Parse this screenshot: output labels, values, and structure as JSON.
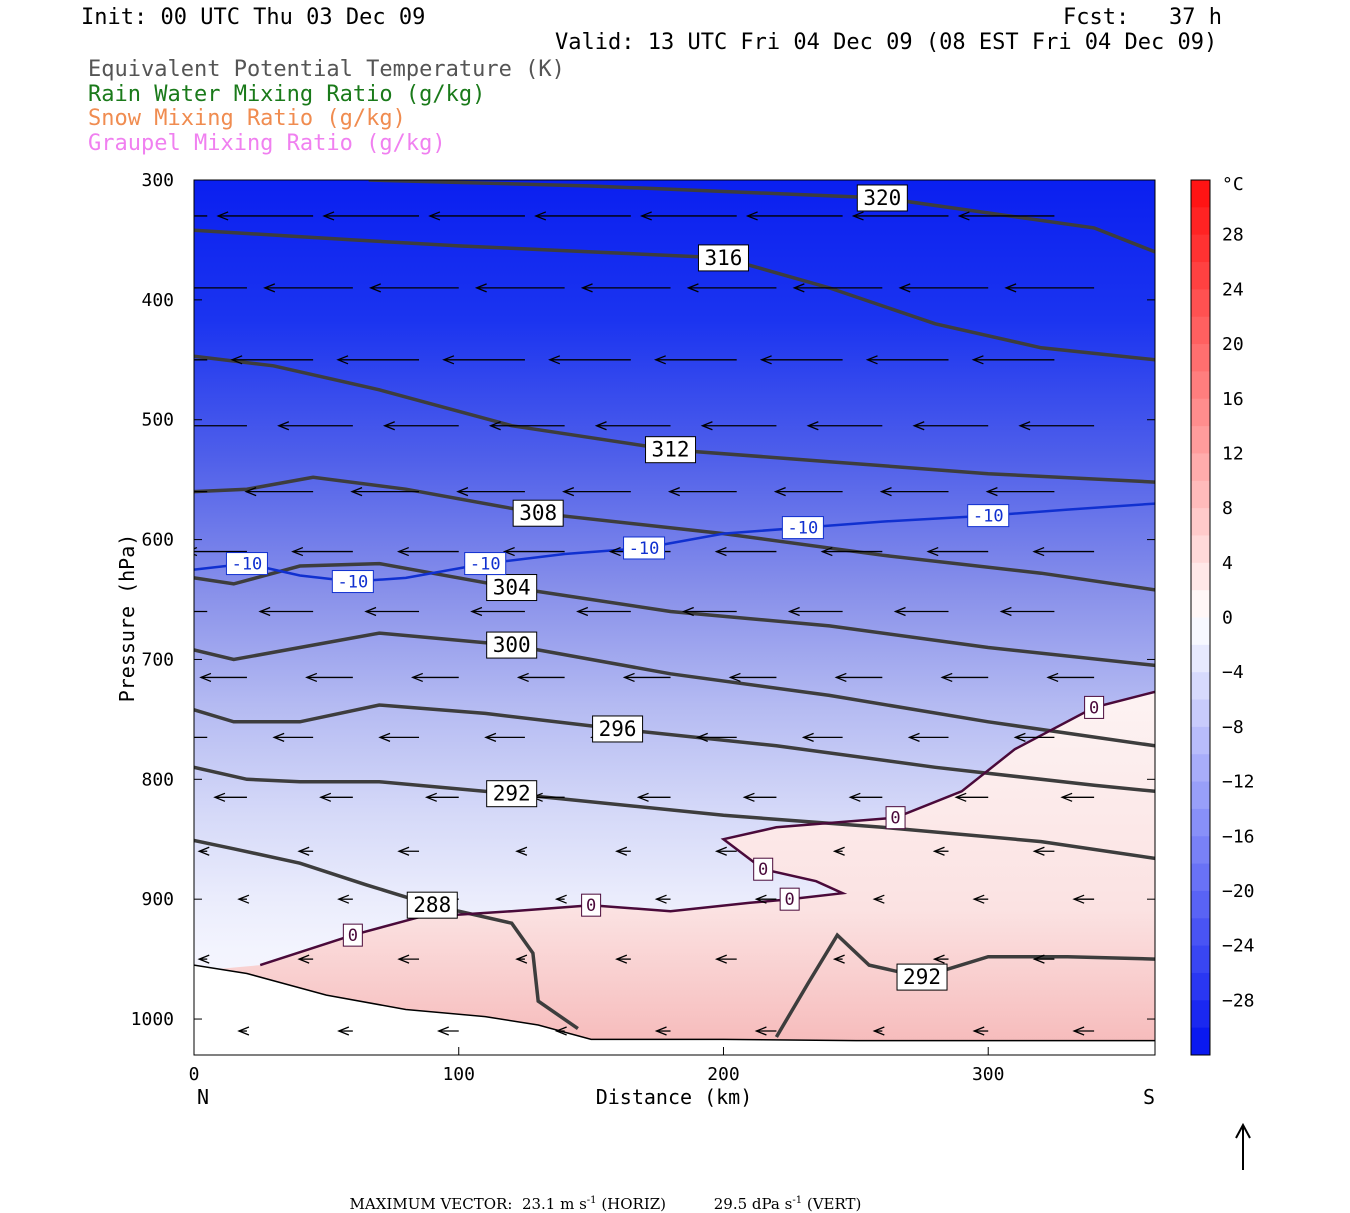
{
  "header": {
    "init": "Init: 00 UTC Thu 03 Dec 09",
    "fcst": "Fcst:   37 h",
    "valid": "Valid: 13 UTC Fri 04 Dec 09 (08 EST Fri 04 Dec 09)"
  },
  "legend": [
    {
      "text": "Equivalent Potential Temperature (K)",
      "color": "#555555"
    },
    {
      "text": "Rain Water Mixing Ratio (g/kg)",
      "color": "#1a7a1a"
    },
    {
      "text": "Snow Mixing Ratio (g/kg)",
      "color": "#f08c50"
    },
    {
      "text": "Graupel Mixing Ratio (g/kg)",
      "color": "#f080f0"
    }
  ],
  "footer": {
    "prefix": "MAXIMUM VECTOR:",
    "horiz_value": "23.1 m s",
    "horiz_exp": "-1",
    "horiz_suffix": " (HORIZ)",
    "vert_value": "29.5 dPa s",
    "vert_exp": "-1",
    "vert_suffix": " (VERT)"
  },
  "chart_data": {
    "type": "cross-section",
    "xlabel": "Distance (km)",
    "ylabel": "Pressure (hPa)",
    "x_range": [
      0,
      363
    ],
    "y_range": [
      300,
      1030
    ],
    "y_scale": "linear, reversed",
    "x_ticks": [
      0,
      100,
      200,
      300
    ],
    "y_ticks": [
      300,
      400,
      500,
      600,
      700,
      800,
      900,
      1000
    ],
    "left_end_label": "N",
    "right_end_label": "S",
    "colorbar": {
      "unit": "°C",
      "ticks": [
        28,
        24,
        20,
        16,
        12,
        8,
        4,
        0,
        -4,
        -8,
        -12,
        -16,
        -20,
        -24,
        -28
      ]
    },
    "theta_e_contours": [
      {
        "label": "320",
        "points": [
          [
            66,
            300
          ],
          [
            150,
            305
          ],
          [
            260,
            315
          ],
          [
            340,
            340
          ],
          [
            363,
            360
          ]
        ]
      },
      {
        "label": "316",
        "points": [
          [
            0,
            342
          ],
          [
            60,
            350
          ],
          [
            100,
            355
          ],
          [
            150,
            360
          ],
          [
            200,
            365
          ],
          [
            240,
            390
          ],
          [
            280,
            420
          ],
          [
            320,
            440
          ],
          [
            363,
            450
          ]
        ]
      },
      {
        "label": "312",
        "points": [
          [
            0,
            447
          ],
          [
            30,
            455
          ],
          [
            70,
            475
          ],
          [
            120,
            505
          ],
          [
            180,
            525
          ],
          [
            240,
            535
          ],
          [
            300,
            545
          ],
          [
            363,
            552
          ]
        ]
      },
      {
        "label": "308",
        "points": [
          [
            0,
            560
          ],
          [
            20,
            558
          ],
          [
            45,
            548
          ],
          [
            80,
            558
          ],
          [
            130,
            578
          ],
          [
            200,
            595
          ],
          [
            260,
            613
          ],
          [
            320,
            628
          ],
          [
            363,
            642
          ]
        ]
      },
      {
        "label": "304",
        "points": [
          [
            0,
            632
          ],
          [
            15,
            637
          ],
          [
            40,
            622
          ],
          [
            70,
            620
          ],
          [
            120,
            640
          ],
          [
            180,
            660
          ],
          [
            240,
            672
          ],
          [
            300,
            690
          ],
          [
            363,
            705
          ]
        ]
      },
      {
        "label": "300",
        "points": [
          [
            0,
            692
          ],
          [
            15,
            700
          ],
          [
            40,
            690
          ],
          [
            70,
            678
          ],
          [
            120,
            688
          ],
          [
            180,
            712
          ],
          [
            240,
            730
          ],
          [
            300,
            752
          ],
          [
            363,
            772
          ]
        ]
      },
      {
        "label": "296",
        "points": [
          [
            0,
            742
          ],
          [
            15,
            752
          ],
          [
            40,
            752
          ],
          [
            70,
            738
          ],
          [
            110,
            745
          ],
          [
            160,
            758
          ],
          [
            220,
            772
          ],
          [
            280,
            790
          ],
          [
            340,
            805
          ],
          [
            363,
            810
          ]
        ]
      },
      {
        "label": "292",
        "points": [
          [
            0,
            790
          ],
          [
            20,
            800
          ],
          [
            40,
            802
          ],
          [
            70,
            802
          ],
          [
            120,
            812
          ],
          [
            200,
            830
          ],
          [
            260,
            840
          ],
          [
            320,
            852
          ],
          [
            363,
            866
          ]
        ]
      },
      {
        "label": "292",
        "points": [
          [
            220,
            1015
          ],
          [
            232,
            970
          ],
          [
            243,
            930
          ],
          [
            255,
            955
          ],
          [
            275,
            965
          ],
          [
            300,
            948
          ],
          [
            330,
            948
          ],
          [
            363,
            950
          ]
        ]
      },
      {
        "label": "288",
        "points": [
          [
            0,
            851
          ],
          [
            15,
            858
          ],
          [
            40,
            870
          ],
          [
            65,
            888
          ],
          [
            90,
            905
          ],
          [
            120,
            920
          ],
          [
            128,
            945
          ],
          [
            130,
            985
          ],
          [
            145,
            1008
          ]
        ]
      }
    ],
    "temperature_contours": [
      {
        "label": "-10",
        "points": [
          [
            0,
            625
          ],
          [
            20,
            620
          ],
          [
            40,
            630
          ],
          [
            60,
            635
          ],
          [
            80,
            632
          ],
          [
            110,
            620
          ],
          [
            140,
            612
          ],
          [
            170,
            607
          ],
          [
            200,
            595
          ],
          [
            230,
            590
          ],
          [
            260,
            585
          ],
          [
            300,
            580
          ],
          [
            330,
            575
          ],
          [
            363,
            570
          ]
        ]
      },
      {
        "label": "0",
        "points": [
          [
            25,
            955
          ],
          [
            60,
            930
          ],
          [
            85,
            915
          ],
          [
            120,
            910
          ],
          [
            150,
            905
          ],
          [
            180,
            910
          ],
          [
            210,
            903
          ],
          [
            225,
            900
          ],
          [
            245,
            895
          ],
          [
            235,
            885
          ],
          [
            215,
            875
          ],
          [
            200,
            850
          ],
          [
            220,
            840
          ],
          [
            265,
            832
          ],
          [
            290,
            810
          ],
          [
            310,
            775
          ],
          [
            340,
            740
          ],
          [
            363,
            727
          ]
        ]
      }
    ],
    "arrow_vectors_present": true
  }
}
